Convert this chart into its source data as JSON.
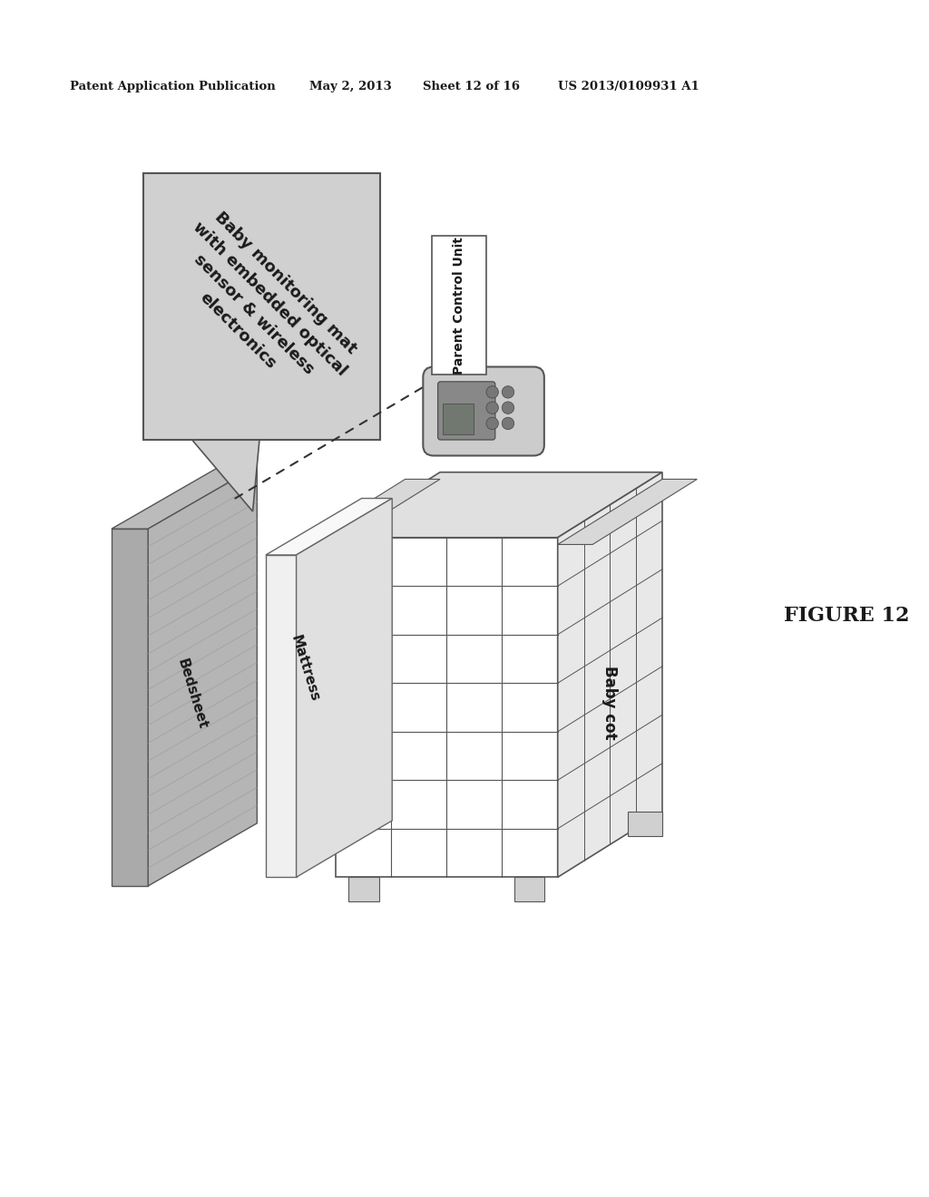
{
  "background_color": "#ffffff",
  "header_text": "Patent Application Publication",
  "header_date": "May 2, 2013",
  "header_sheet": "Sheet 12 of 16",
  "header_patent": "US 2013/0109931 A1",
  "figure_label": "FIGURE 12",
  "callout_text": "Baby monitoring mat\nwith embedded optical\nsensor & wireless\nelectronics",
  "label_bedsheet": "Bedsheet",
  "label_mattress": "Mattress",
  "label_baby_cot": "Baby cot",
  "label_parent_control": "Parent Control Unit",
  "callout_bg": "#d0d0d0",
  "callout_border": "#555555",
  "bedsheet_face_color": "#aaaaaa",
  "bedsheet_side_color": "#c0c0c0",
  "mattress_face_color": "#f0f0f0",
  "mattress_side_color": "#e0e0e0",
  "cot_top_color": "#e0e0e0",
  "cot_front_color": "#ffffff",
  "cot_side_color": "#e8e8e8",
  "cot_edge": "#555555",
  "remote_body_color": "#cccccc",
  "remote_screen_color": "#888898"
}
